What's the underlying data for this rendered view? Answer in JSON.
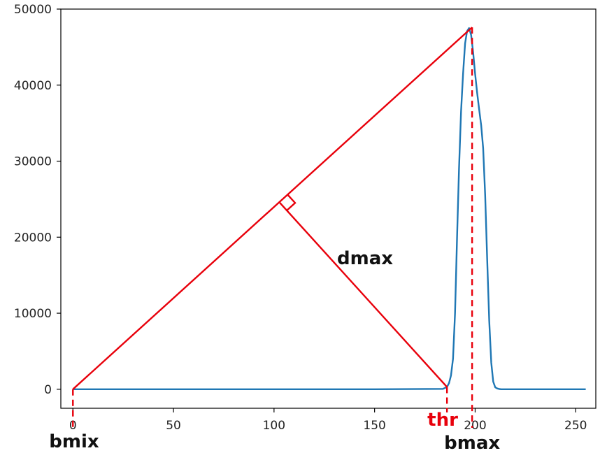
{
  "chart_data": {
    "type": "line",
    "title": "",
    "xlabel": "",
    "ylabel": "",
    "xlim": [
      -6,
      260
    ],
    "ylim": [
      -2500,
      50000
    ],
    "x_ticks": [
      0,
      50,
      100,
      150,
      200,
      250
    ],
    "y_ticks": [
      0,
      10000,
      20000,
      30000,
      40000,
      50000
    ],
    "x_tick_labels": [
      "0",
      "50",
      "100",
      "150",
      "200",
      "250"
    ],
    "y_tick_labels": [
      "0",
      "10000",
      "20000",
      "30000",
      "40000",
      "50000"
    ],
    "grid": false,
    "series": [
      {
        "color": "#1f77b4",
        "x": [
          0,
          50,
          100,
          150,
          184,
          186,
          187,
          188,
          189,
          190,
          191,
          192,
          193,
          194,
          195,
          196,
          197,
          198,
          199,
          200,
          201,
          202,
          203,
          204,
          205,
          206,
          207,
          208,
          209,
          210,
          211,
          212,
          213,
          220,
          255
        ],
        "y": [
          0,
          0,
          0,
          0,
          50,
          300,
          800,
          1800,
          4000,
          10000,
          20000,
          29000,
          36500,
          41500,
          45500,
          47100,
          47500,
          46600,
          44300,
          41500,
          39000,
          36800,
          34700,
          31700,
          25500,
          17000,
          9000,
          3500,
          1000,
          250,
          100,
          30,
          0,
          0,
          0
        ]
      }
    ],
    "annotations": {
      "color": "#e8000b",
      "text_dark": "#111111",
      "bmix_label": "bmix",
      "bmax_label": "bmax",
      "thr_label": "thr",
      "dmax_label": "dmax",
      "bmix_point": [
        0,
        0
      ],
      "peak_point": [
        198.5,
        47600
      ],
      "thr_point": [
        186,
        300
      ],
      "foot_point": [
        102,
        25000
      ]
    }
  }
}
